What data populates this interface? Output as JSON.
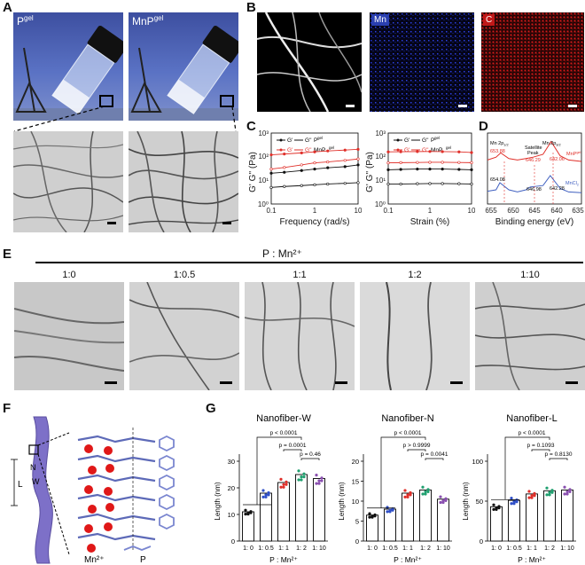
{
  "panels": {
    "A": {
      "letter": "A",
      "vial_labels": [
        "P",
        "gel",
        "MnP",
        "gel"
      ]
    },
    "B": {
      "letter": "B",
      "maps": [
        "Mn",
        "C"
      ]
    },
    "C": {
      "letter": "C",
      "plot1": {
        "ylabel": "G' G'' (Pa)",
        "xlabel": "Frequency (rad/s)",
        "legend": [
          "G'",
          "G''",
          "P",
          "gel",
          "G'",
          "G''",
          "MnP",
          "gel"
        ],
        "xticks": [
          "0.1",
          "1",
          "10"
        ],
        "yticks": [
          "10⁰",
          "10¹",
          "10²",
          "10³"
        ]
      },
      "plot2": {
        "ylabel": "G' G'' (Pa)",
        "xlabel": "Strain (%)",
        "legend": [
          "G'",
          "G''",
          "P",
          "gel",
          "G'",
          "G''",
          "MnP",
          "gel"
        ],
        "xticks": [
          "0.1",
          "1",
          "10"
        ],
        "yticks": [
          "10⁰",
          "10¹",
          "10²",
          "10³"
        ]
      }
    },
    "D": {
      "letter": "D",
      "xlabel": "Binding energy (eV)",
      "xticks": [
        "655",
        "650",
        "645",
        "640",
        "635"
      ],
      "annotations": {
        "mn2p12": "Mn 2p",
        "mn2p12_sub": "1/2",
        "mn2p32": "Mn 2p",
        "mn2p32_sub": "3/2",
        "satellite1": "Satellite",
        "satellite2": "Peak",
        "v653": "653.88",
        "v646a": "646.29",
        "v642a": "642.06",
        "v654": "654.08",
        "v646b": "646.98",
        "v642b": "642.28",
        "mnp": "MnP",
        "mnp_sup": "gel",
        "mncl": "MnCl",
        "mncl_sub": "2"
      }
    },
    "E": {
      "letter": "E",
      "ratio_title": "P : Mn²⁺",
      "ratios": [
        "1:0",
        "1:0.5",
        "1:1",
        "1:2",
        "1:10"
      ]
    },
    "F": {
      "letter": "F",
      "N": "N",
      "L": "L",
      "W": "W",
      "legend_mn": "Mn²⁺",
      "legend_p": "P"
    },
    "G": {
      "letter": "G",
      "xlabel": "P : Mn²⁺",
      "categories": [
        "1: 0",
        "1: 0.5",
        "1: 1",
        "1: 2",
        "1: 10"
      ],
      "ylabel": "Length (nm)"
    }
  },
  "chart_data": [
    {
      "type": "line",
      "title": "",
      "xlabel": "Frequency (rad/s)",
      "ylabel": "G' G'' (Pa)",
      "xscale": "log",
      "yscale": "log",
      "xlim": [
        0.1,
        10
      ],
      "ylim": [
        1,
        1000
      ],
      "series": [
        {
          "name": "G' MnPgel",
          "color": "#e0302a",
          "x": [
            0.1,
            0.2,
            0.5,
            1,
            2,
            5,
            10
          ],
          "y": [
            120,
            130,
            145,
            160,
            175,
            190,
            205
          ]
        },
        {
          "name": "G'' MnPgel",
          "color": "#e0302a",
          "x": [
            0.1,
            0.2,
            0.5,
            1,
            2,
            5,
            10
          ],
          "y": [
            30,
            35,
            45,
            55,
            60,
            70,
            80
          ]
        },
        {
          "name": "G' Pgel",
          "color": "#111111",
          "x": [
            0.1,
            0.2,
            0.5,
            1,
            2,
            5,
            10
          ],
          "y": [
            20,
            22,
            26,
            30,
            34,
            38,
            45
          ]
        },
        {
          "name": "G'' Pgel",
          "color": "#111111",
          "x": [
            0.1,
            0.2,
            0.5,
            1,
            2,
            5,
            10
          ],
          "y": [
            5,
            5.5,
            6,
            6.5,
            7,
            7.5,
            8
          ]
        }
      ]
    },
    {
      "type": "line",
      "title": "",
      "xlabel": "Strain (%)",
      "ylabel": "G' G'' (Pa)",
      "xscale": "log",
      "yscale": "log",
      "xlim": [
        0.1,
        10
      ],
      "ylim": [
        1,
        1000
      ],
      "series": [
        {
          "name": "G' MnPgel",
          "color": "#e0302a",
          "x": [
            0.1,
            0.2,
            0.5,
            1,
            2,
            5,
            10
          ],
          "y": [
            160,
            162,
            165,
            166,
            164,
            160,
            150
          ]
        },
        {
          "name": "G'' MnPgel",
          "color": "#e0302a",
          "x": [
            0.1,
            0.2,
            0.5,
            1,
            2,
            5,
            10
          ],
          "y": [
            55,
            56,
            57,
            58,
            58,
            57,
            56
          ]
        },
        {
          "name": "G' Pgel",
          "color": "#111111",
          "x": [
            0.1,
            0.2,
            0.5,
            1,
            2,
            5,
            10
          ],
          "y": [
            28,
            29,
            30,
            30,
            30,
            29,
            28
          ]
        },
        {
          "name": "G'' Pgel",
          "color": "#111111",
          "x": [
            0.1,
            0.2,
            0.5,
            1,
            2,
            5,
            10
          ],
          "y": [
            7,
            7,
            7.2,
            7.3,
            7.3,
            7.2,
            7
          ]
        }
      ]
    },
    {
      "type": "line",
      "title": "",
      "xlabel": "Binding energy (eV)",
      "ylabel": "",
      "xlim": [
        657,
        635
      ],
      "series": [
        {
          "name": "MnPgel",
          "color": "#e0302a",
          "x": [
            657,
            655,
            653.9,
            652,
            650,
            648,
            646.3,
            644,
            642.1,
            640,
            638,
            635
          ],
          "y": [
            0.62,
            0.66,
            0.72,
            0.64,
            0.62,
            0.64,
            0.66,
            0.7,
            0.88,
            0.68,
            0.62,
            0.6
          ]
        },
        {
          "name": "MnCl2",
          "color": "#4060c0",
          "x": [
            657,
            655,
            654.1,
            652,
            650,
            648,
            647,
            644,
            642.3,
            640,
            638,
            635
          ],
          "y": [
            0.18,
            0.2,
            0.3,
            0.2,
            0.17,
            0.2,
            0.24,
            0.26,
            0.4,
            0.22,
            0.17,
            0.16
          ]
        }
      ]
    },
    {
      "type": "bar",
      "title": "Nanofiber-W",
      "categories": [
        "1: 0",
        "1: 0.5",
        "1: 1",
        "1: 2",
        "1: 10"
      ],
      "values": [
        11,
        18,
        22,
        25,
        23.5
      ],
      "ylabel": "Length (nm)",
      "xlabel": "P : Mn²⁺",
      "ylim": [
        0,
        30
      ],
      "yticks": [
        0,
        10,
        20,
        30
      ],
      "annotations": [
        "p < 0.0001",
        "p = 0.0001",
        "p = 0.46"
      ]
    },
    {
      "type": "bar",
      "title": "Nanofiber-N",
      "categories": [
        "1: 0",
        "1: 0.5",
        "1: 1",
        "1: 2",
        "1: 10"
      ],
      "values": [
        6.5,
        8,
        12,
        12.8,
        10.5
      ],
      "ylabel": "Length (nm)",
      "xlabel": "P : Mn²⁺",
      "ylim": [
        0,
        20
      ],
      "yticks": [
        0,
        5,
        10,
        15,
        20
      ],
      "annotations": [
        "p < 0.0001",
        "p > 0.9999",
        "p = 0.0041"
      ]
    },
    {
      "type": "bar",
      "title": "Nanofiber-L",
      "categories": [
        "1: 0",
        "1: 0.5",
        "1: 1",
        "1: 2",
        "1: 10"
      ],
      "values": [
        43,
        51,
        59,
        63,
        64
      ],
      "ylabel": "Length (nm)",
      "xlabel": "P : Mn²⁺",
      "ylim": [
        0,
        100
      ],
      "yticks": [
        0,
        50,
        100
      ],
      "annotations": [
        "p < 0.0001",
        "p = 0.1093",
        "p = 0.8130"
      ]
    }
  ]
}
